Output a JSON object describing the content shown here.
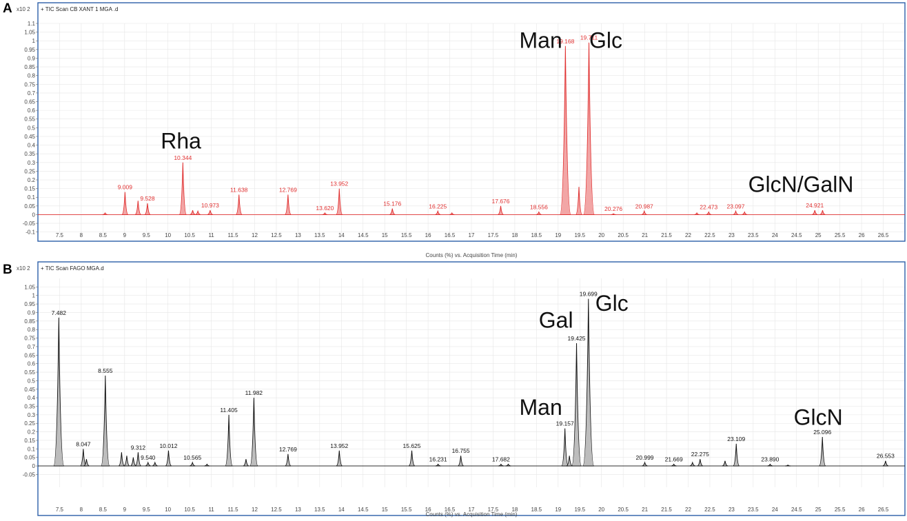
{
  "chart_data": [
    {
      "type": "line",
      "panel_label": "A",
      "scan_title": "+ TIC Scan CB XANT 1 MGA .d",
      "y_exponent": "x10 2",
      "xlabel": "Counts (%) vs. Acquisition Time (min)",
      "xlim": [
        7,
        27
      ],
      "ylim": [
        -0.125,
        1.1
      ],
      "xticks": [
        "7.5",
        "8",
        "8.5",
        "9",
        "9.5",
        "10",
        "10.5",
        "11",
        "11.5",
        "12",
        "12.5",
        "13",
        "13.5",
        "14",
        "14.5",
        "15",
        "15.5",
        "16",
        "16.5",
        "17",
        "17.5",
        "18",
        "18.5",
        "19",
        "19.5",
        "20",
        "20.5",
        "21",
        "21.5",
        "22",
        "22.5",
        "23",
        "23.5",
        "24",
        "24.5",
        "25",
        "25.5",
        "26",
        "26.5"
      ],
      "yticks": [
        "1.1",
        "1.05",
        "1",
        "0.95",
        "0.9",
        "0.85",
        "0.8",
        "0.75",
        "0.7",
        "0.65",
        "0.6",
        "0.55",
        "0.5",
        "0.45",
        "0.4",
        "0.35",
        "0.3",
        "0.25",
        "0.2",
        "0.15",
        "0.1",
        "0.05",
        "0",
        "-0.05",
        "-0.1"
      ],
      "color": "#e03030",
      "fill": "#f2a6a6",
      "peaks": [
        {
          "x": 8.55,
          "y": 0.01
        },
        {
          "x": 9.009,
          "y": 0.13,
          "label": "9.009"
        },
        {
          "x": 9.31,
          "y": 0.08
        },
        {
          "x": 9.528,
          "y": 0.065,
          "label": "9.528"
        },
        {
          "x": 10.344,
          "y": 0.3,
          "label": "10.344"
        },
        {
          "x": 10.57,
          "y": 0.025
        },
        {
          "x": 10.69,
          "y": 0.02
        },
        {
          "x": 10.973,
          "y": 0.025,
          "label": "10.973"
        },
        {
          "x": 11.638,
          "y": 0.115,
          "label": "11.638"
        },
        {
          "x": 12.769,
          "y": 0.115,
          "label": "12.769"
        },
        {
          "x": 13.62,
          "y": 0.01,
          "label": "13.620"
        },
        {
          "x": 13.952,
          "y": 0.15,
          "label": "13.952"
        },
        {
          "x": 15.176,
          "y": 0.035,
          "label": "15.176"
        },
        {
          "x": 16.225,
          "y": 0.02,
          "label": "16.225"
        },
        {
          "x": 16.55,
          "y": 0.01
        },
        {
          "x": 17.676,
          "y": 0.05,
          "label": "17.676"
        },
        {
          "x": 18.556,
          "y": 0.015,
          "label": "18.556"
        },
        {
          "x": 19.168,
          "y": 0.97,
          "label": "19.168"
        },
        {
          "x": 19.48,
          "y": 0.16
        },
        {
          "x": 19.711,
          "y": 0.99,
          "label": "19.711"
        },
        {
          "x": 20.276,
          "y": 0.005,
          "label": "20.276"
        },
        {
          "x": 20.987,
          "y": 0.02,
          "label": "20.987"
        },
        {
          "x": 22.2,
          "y": 0.01
        },
        {
          "x": 22.473,
          "y": 0.015,
          "label": "22.473"
        },
        {
          "x": 23.097,
          "y": 0.02,
          "label": "23.097"
        },
        {
          "x": 23.3,
          "y": 0.015
        },
        {
          "x": 24.921,
          "y": 0.025,
          "label": "24.921"
        },
        {
          "x": 25.1,
          "y": 0.025
        }
      ],
      "annotations": [
        {
          "text": "Rha",
          "x": 10.3,
          "y": 0.38
        },
        {
          "text": "Man",
          "x": 18.6,
          "y": 0.96
        },
        {
          "text": "Glc",
          "x": 20.1,
          "y": 0.96
        },
        {
          "text": "GlcN/GalN",
          "x": 24.6,
          "y": 0.13
        }
      ]
    },
    {
      "type": "line",
      "panel_label": "B",
      "scan_title": "+ TIC Scan FAGO MGA.d",
      "y_exponent": "x10 2",
      "xlabel": "Counts (%) vs. Acquisition Time (min)",
      "xlim": [
        7,
        27
      ],
      "ylim": [
        -0.125,
        1.1
      ],
      "xticks": [
        "7.5",
        "8",
        "8.5",
        "9",
        "9.5",
        "10",
        "10.5",
        "11",
        "11.5",
        "12",
        "12.5",
        "13",
        "13.5",
        "14",
        "14.5",
        "15",
        "15.5",
        "16",
        "16.5",
        "17",
        "17.5",
        "18",
        "18.5",
        "19",
        "19.5",
        "20",
        "20.5",
        "21",
        "21.5",
        "22",
        "22.5",
        "23",
        "23.5",
        "24",
        "24.5",
        "25",
        "25.5",
        "26",
        "26.5"
      ],
      "yticks": [
        "1.05",
        "1",
        "0.95",
        "0.9",
        "0.85",
        "0.8",
        "0.75",
        "0.7",
        "0.65",
        "0.6",
        "0.55",
        "0.5",
        "0.45",
        "0.4",
        "0.35",
        "0.3",
        "0.25",
        "0.2",
        "0.15",
        "0.1",
        "0.05",
        "0",
        "-0.05"
      ],
      "color": "#111111",
      "fill": "#bdbdbd",
      "peaks": [
        {
          "x": 7.482,
          "y": 0.87,
          "label": "7.482"
        },
        {
          "x": 8.047,
          "y": 0.1,
          "label": "8.047"
        },
        {
          "x": 8.12,
          "y": 0.04
        },
        {
          "x": 8.555,
          "y": 0.53,
          "label": "8.555"
        },
        {
          "x": 8.93,
          "y": 0.08
        },
        {
          "x": 9.05,
          "y": 0.06
        },
        {
          "x": 9.2,
          "y": 0.05
        },
        {
          "x": 9.312,
          "y": 0.08,
          "label": "9.312"
        },
        {
          "x": 9.54,
          "y": 0.02,
          "label": "9.540"
        },
        {
          "x": 9.7,
          "y": 0.02
        },
        {
          "x": 10.012,
          "y": 0.09,
          "label": "10.012"
        },
        {
          "x": 10.565,
          "y": 0.02,
          "label": "10.565"
        },
        {
          "x": 10.9,
          "y": 0.01
        },
        {
          "x": 11.405,
          "y": 0.3,
          "label": "11.405"
        },
        {
          "x": 11.8,
          "y": 0.04
        },
        {
          "x": 11.982,
          "y": 0.4,
          "label": "11.982"
        },
        {
          "x": 12.769,
          "y": 0.07,
          "label": "12.769"
        },
        {
          "x": 13.952,
          "y": 0.09,
          "label": "13.952"
        },
        {
          "x": 15.625,
          "y": 0.09,
          "label": "15.625"
        },
        {
          "x": 16.231,
          "y": 0.01,
          "label": "16.231"
        },
        {
          "x": 16.755,
          "y": 0.06,
          "label": "16.755"
        },
        {
          "x": 17.682,
          "y": 0.01,
          "label": "17.682"
        },
        {
          "x": 17.85,
          "y": 0.01
        },
        {
          "x": 19.157,
          "y": 0.22,
          "label": "19.157"
        },
        {
          "x": 19.26,
          "y": 0.06
        },
        {
          "x": 19.425,
          "y": 0.72,
          "label": "19.425"
        },
        {
          "x": 19.699,
          "y": 0.98,
          "label": "19.699"
        },
        {
          "x": 20.999,
          "y": 0.02,
          "label": "20.999"
        },
        {
          "x": 21.669,
          "y": 0.01,
          "label": "21.669"
        },
        {
          "x": 22.1,
          "y": 0.02
        },
        {
          "x": 22.275,
          "y": 0.04,
          "label": "22.275"
        },
        {
          "x": 22.85,
          "y": 0.03
        },
        {
          "x": 23.109,
          "y": 0.13,
          "label": "23.109"
        },
        {
          "x": 23.89,
          "y": 0.01,
          "label": "23.890"
        },
        {
          "x": 24.3,
          "y": 0.005
        },
        {
          "x": 25.096,
          "y": 0.17,
          "label": "25.096"
        },
        {
          "x": 26.553,
          "y": 0.03,
          "label": "26.553"
        }
      ],
      "annotations": [
        {
          "text": "Gal",
          "x": 18.95,
          "y": 0.81
        },
        {
          "text": "Glc",
          "x": 20.24,
          "y": 0.91
        },
        {
          "text": "Man",
          "x": 18.6,
          "y": 0.3
        },
        {
          "text": "GlcN",
          "x": 25.0,
          "y": 0.24
        }
      ]
    }
  ]
}
